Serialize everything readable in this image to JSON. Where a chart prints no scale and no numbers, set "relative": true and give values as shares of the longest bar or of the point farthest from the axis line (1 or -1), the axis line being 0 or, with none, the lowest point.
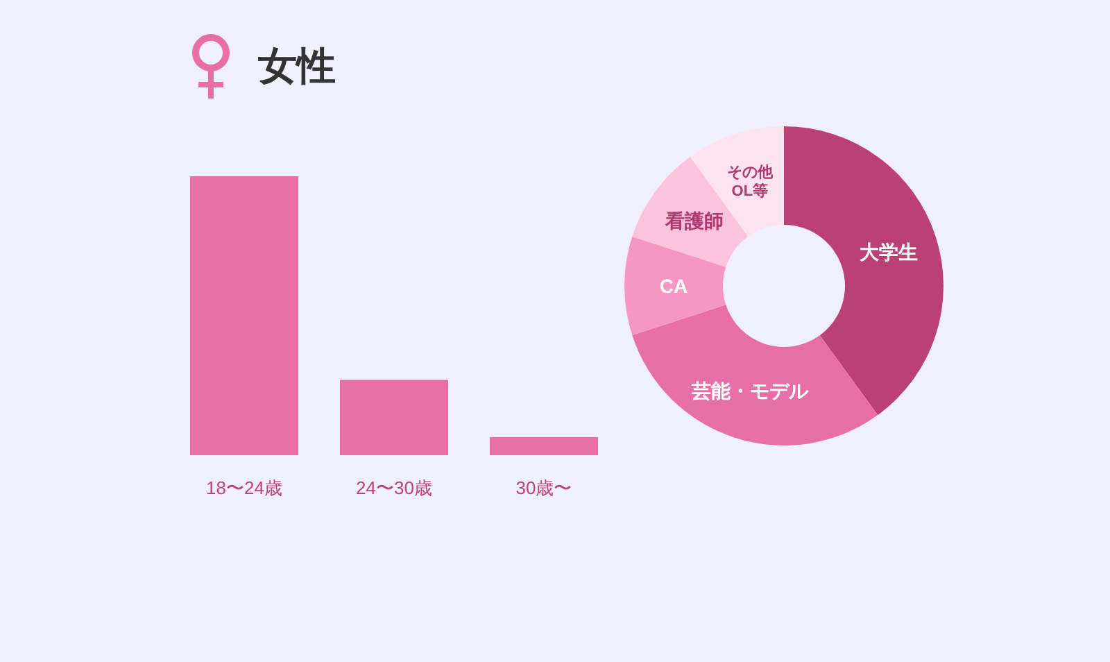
{
  "chart_data": [
    {
      "type": "bar",
      "title": "女性",
      "relative": true,
      "categories": [
        "18〜24歳",
        "24〜30歳",
        "30歳〜"
      ],
      "values": [
        1,
        0.27,
        0.065
      ],
      "color": "#e86fa5"
    },
    {
      "type": "donut",
      "categories": [
        "大学生",
        "芸能・モデル",
        "CA",
        "看護師",
        "その他\nOL等"
      ],
      "values": [
        40,
        30,
        10,
        10,
        10
      ],
      "colors": [
        "#bb4075",
        "#e86fa5",
        "#f697c3",
        "#fcc4dc",
        "#fde3ef"
      ]
    }
  ]
}
